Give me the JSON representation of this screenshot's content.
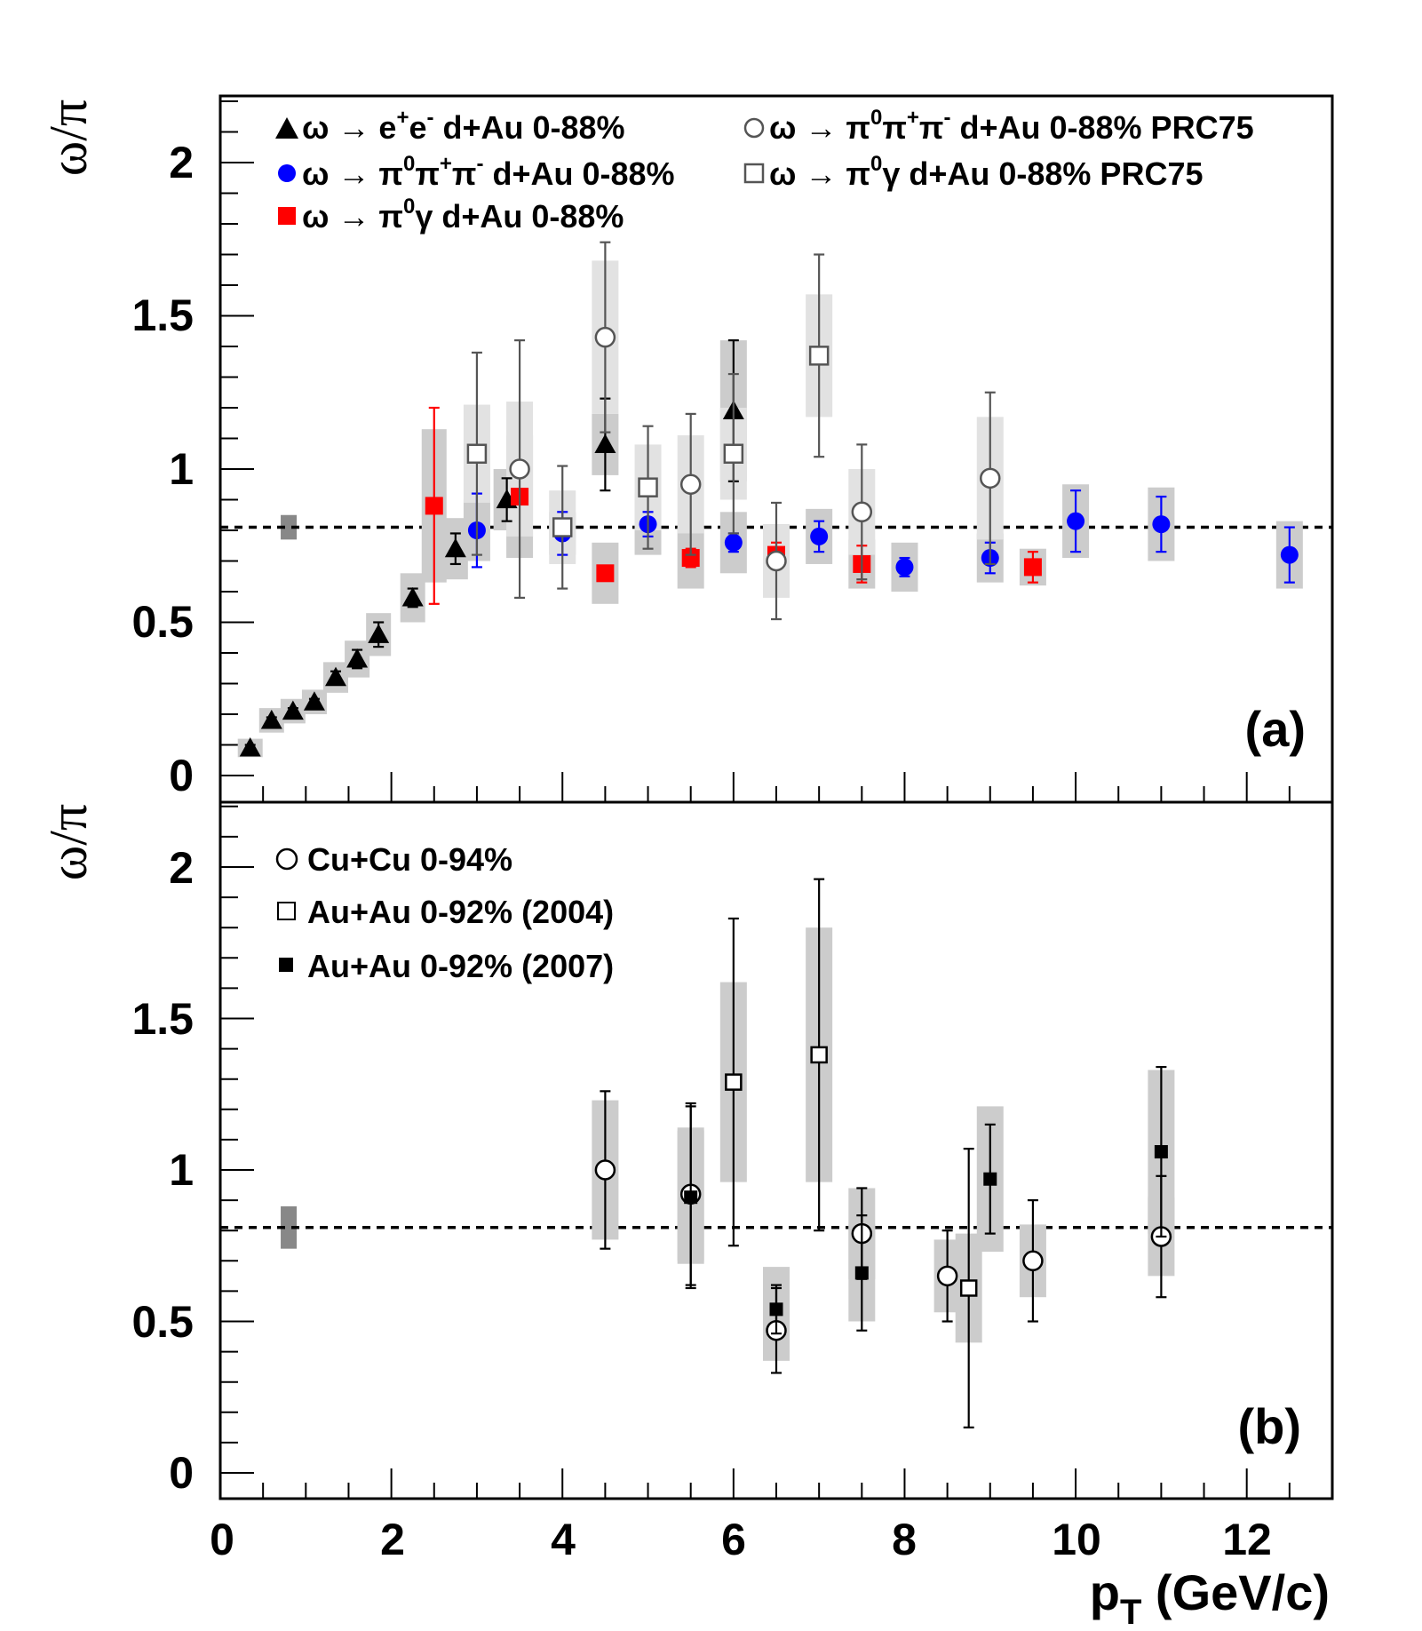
{
  "chart_data": [
    {
      "panel": "(a)",
      "type": "scatter",
      "ylabel": "ω/π",
      "xlim": [
        0,
        13
      ],
      "ylim": [
        -0.1,
        2.2
      ],
      "reference_line": {
        "y": 0.81,
        "style": "dashed",
        "uncertainty": [
          0.77,
          0.85
        ],
        "box_x": 0.8
      },
      "legend_placement": "top-left",
      "series": [
        {
          "name": "ω → e⁺e⁻ d+Au 0-88%",
          "marker": "filled-triangle",
          "color": "#000000",
          "points": [
            {
              "x": 0.35,
              "y": 0.09,
              "err": 0.01,
              "sys": 0.03
            },
            {
              "x": 0.6,
              "y": 0.18,
              "err": 0.01,
              "sys": 0.04
            },
            {
              "x": 0.85,
              "y": 0.21,
              "err": 0.01,
              "sys": 0.04
            },
            {
              "x": 1.1,
              "y": 0.24,
              "err": 0.01,
              "sys": 0.04
            },
            {
              "x": 1.35,
              "y": 0.32,
              "err": 0.02,
              "sys": 0.05
            },
            {
              "x": 1.6,
              "y": 0.38,
              "err": 0.03,
              "sys": 0.06
            },
            {
              "x": 1.85,
              "y": 0.46,
              "err": 0.04,
              "sys": 0.07
            },
            {
              "x": 2.25,
              "y": 0.58,
              "err": 0.03,
              "sys": 0.08
            },
            {
              "x": 2.75,
              "y": 0.74,
              "err": 0.05,
              "sys": 0.1
            },
            {
              "x": 3.35,
              "y": 0.9,
              "err": 0.07,
              "sys": 0.1
            },
            {
              "x": 4.5,
              "y": 1.08,
              "err": 0.15,
              "sys": 0.1
            },
            {
              "x": 6.0,
              "y": 1.19,
              "err": 0.23,
              "sys": 0.23
            }
          ]
        },
        {
          "name": "ω → π⁰π⁺π⁻ d+Au 0-88%",
          "marker": "filled-circle",
          "color": "#0000ff",
          "points": [
            {
              "x": 3.0,
              "y": 0.8,
              "err": 0.12,
              "sys": 0.1
            },
            {
              "x": 4.0,
              "y": 0.79,
              "err": 0.07,
              "sys": 0.07
            },
            {
              "x": 5.0,
              "y": 0.82,
              "err": 0.04,
              "sys": 0.1
            },
            {
              "x": 6.0,
              "y": 0.76,
              "err": 0.03,
              "sys": 0.1
            },
            {
              "x": 7.0,
              "y": 0.78,
              "err": 0.05,
              "sys": 0.09
            },
            {
              "x": 8.0,
              "y": 0.68,
              "err": 0.03,
              "sys": 0.08
            },
            {
              "x": 9.0,
              "y": 0.71,
              "err": 0.05,
              "sys": 0.08
            },
            {
              "x": 10.0,
              "y": 0.83,
              "err": 0.1,
              "sys": 0.12
            },
            {
              "x": 11.0,
              "y": 0.82,
              "err": 0.09,
              "sys": 0.12
            },
            {
              "x": 12.5,
              "y": 0.72,
              "err": 0.09,
              "sys": 0.11
            }
          ]
        },
        {
          "name": "ω → π⁰γ d+Au 0-88%",
          "marker": "filled-square",
          "color": "#ff0000",
          "points": [
            {
              "x": 2.5,
              "y": 0.88,
              "err": 0.32,
              "sys": 0.25
            },
            {
              "x": 3.5,
              "y": 0.91,
              "err": 0.02,
              "sys": 0.2
            },
            {
              "x": 4.5,
              "y": 0.66,
              "err": 0.02,
              "sys": 0.1
            },
            {
              "x": 5.5,
              "y": 0.71,
              "err": 0.03,
              "sys": 0.1
            },
            {
              "x": 6.5,
              "y": 0.72,
              "err": 0.04,
              "sys": 0.1
            },
            {
              "x": 7.5,
              "y": 0.69,
              "err": 0.06,
              "sys": 0.08
            },
            {
              "x": 9.5,
              "y": 0.68,
              "err": 0.05,
              "sys": 0.06
            }
          ]
        },
        {
          "name": "ω → π⁰π⁺π⁻ d+Au 0-88% PRC75",
          "marker": "open-circle",
          "color": "#555555",
          "points": [
            {
              "x": 3.5,
              "y": 1.0,
              "err": 0.42,
              "sys": 0.22
            },
            {
              "x": 4.5,
              "y": 1.43,
              "err": 0.31,
              "sys": 0.25
            },
            {
              "x": 5.5,
              "y": 0.95,
              "err": 0.23,
              "sys": 0.16
            },
            {
              "x": 6.5,
              "y": 0.7,
              "err": 0.19,
              "sys": 0.12
            },
            {
              "x": 7.5,
              "y": 0.86,
              "err": 0.22,
              "sys": 0.14
            },
            {
              "x": 9.0,
              "y": 0.97,
              "err": 0.28,
              "sys": 0.2
            }
          ]
        },
        {
          "name": "ω → π⁰γ d+Au 0-88% PRC75",
          "marker": "open-square",
          "color": "#555555",
          "points": [
            {
              "x": 3.0,
              "y": 1.05,
              "err": 0.33,
              "sys": 0.16
            },
            {
              "x": 4.0,
              "y": 0.81,
              "err": 0.2,
              "sys": 0.12
            },
            {
              "x": 5.0,
              "y": 0.94,
              "err": 0.2,
              "sys": 0.14
            },
            {
              "x": 6.0,
              "y": 1.05,
              "err": 0.26,
              "sys": 0.15
            },
            {
              "x": 7.0,
              "y": 1.37,
              "err": 0.33,
              "sys": 0.2
            }
          ]
        }
      ]
    },
    {
      "panel": "(b)",
      "type": "scatter",
      "ylabel": "ω/π",
      "xlabel": "p",
      "xlabel_sub": "T",
      "xlabel_units": " (GeV/c)",
      "xlim": [
        0,
        13
      ],
      "ylim": [
        -0.1,
        2.2
      ],
      "x_ticks": [
        "0",
        "2",
        "4",
        "6",
        "8",
        "10",
        "12"
      ],
      "reference_line": {
        "y": 0.81,
        "style": "dashed",
        "uncertainty": [
          0.74,
          0.88
        ],
        "box_x": 0.8
      },
      "legend_placement": "top-left",
      "series": [
        {
          "name": "Cu+Cu 0-94%",
          "marker": "open-circle",
          "color": "#000000",
          "points": [
            {
              "x": 4.5,
              "y": 1.0,
              "err": 0.26,
              "sys": 0.23
            },
            {
              "x": 5.5,
              "y": 0.92,
              "err": 0.3,
              "sys": 0.22
            },
            {
              "x": 6.5,
              "y": 0.47,
              "err": 0.14,
              "sys": 0.1
            },
            {
              "x": 7.5,
              "y": 0.79,
              "err": 0.15,
              "sys": 0.15
            },
            {
              "x": 8.5,
              "y": 0.65,
              "err": 0.15,
              "sys": 0.12
            },
            {
              "x": 9.5,
              "y": 0.7,
              "err": 0.2,
              "sys": 0.12
            },
            {
              "x": 11.0,
              "y": 0.78,
              "err": 0.2,
              "sys": 0.13
            }
          ]
        },
        {
          "name": "Au+Au 0-92% (2004)",
          "marker": "open-square",
          "color": "#000000",
          "points": [
            {
              "x": 6.0,
              "y": 1.29,
              "err": 0.54,
              "sys": 0.33
            },
            {
              "x": 7.0,
              "y": 1.38,
              "err": 0.58,
              "sys": 0.42
            },
            {
              "x": 8.75,
              "y": 0.61,
              "err": 0.46,
              "sys": 0.18
            }
          ]
        },
        {
          "name": "Au+Au 0-92% (2007)",
          "marker": "filled-square",
          "color": "#000000",
          "points": [
            {
              "x": 5.5,
              "y": 0.91,
              "err": 0.3,
              "sys": 0.22
            },
            {
              "x": 6.5,
              "y": 0.54,
              "err": 0.08,
              "sys": 0.14
            },
            {
              "x": 7.5,
              "y": 0.66,
              "err": 0.19,
              "sys": 0.16
            },
            {
              "x": 9.0,
              "y": 0.97,
              "err": 0.18,
              "sys": 0.24
            },
            {
              "x": 11.0,
              "y": 1.06,
              "err": 0.28,
              "sys": 0.27
            }
          ]
        }
      ]
    }
  ],
  "panel_a": {
    "ylabel": "ω/π",
    "y_ticks": [
      "0",
      "0.5",
      "1",
      "1.5",
      "2"
    ],
    "label": "(a)",
    "legend": [
      {
        "prefix": "ω → e",
        "sup1": "+",
        "mid": "e",
        "sup2": "-",
        "suffix": " d+Au 0-88%"
      },
      {
        "prefix": "ω → π",
        "sup1": "0",
        "mid": "π",
        "sup2": "+",
        "mid2": "π",
        "sup3": "-",
        "suffix": " d+Au 0-88%"
      },
      {
        "prefix": "ω → π",
        "sup1": "0",
        "mid": "γ d+Au 0-88%"
      },
      {
        "prefix": "ω → π",
        "sup1": "0",
        "mid": "π",
        "sup2": "+",
        "mid2": "π",
        "sup3": "-",
        "suffix": " d+Au 0-88% PRC75"
      },
      {
        "prefix": "ω → π",
        "sup1": "0",
        "mid": "γ d+Au 0-88% PRC75"
      }
    ]
  },
  "panel_b": {
    "ylabel": "ω/π",
    "y_ticks": [
      "0",
      "0.5",
      "1",
      "1.5",
      "2"
    ],
    "label": "(b)",
    "legend": [
      "Cu+Cu 0-94%",
      "Au+Au 0-92% (2004)",
      "Au+Au 0-92% (2007)"
    ]
  },
  "colors": {
    "sys_box": "#cccccc",
    "sys_box_light": "#e2e2e2",
    "ref_box": "#888888"
  }
}
